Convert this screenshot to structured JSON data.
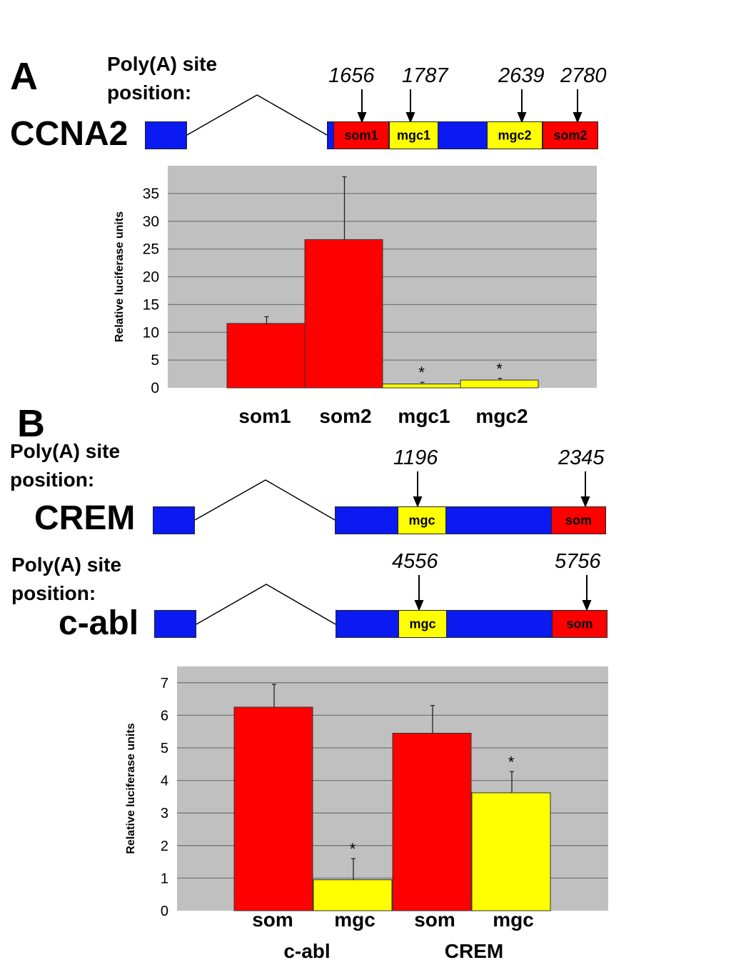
{
  "panel_a": {
    "letter": "A",
    "polya_label": "Poly(A) site position:",
    "gene": "CCNA2",
    "positions": [
      "1656",
      "1787",
      "2639",
      "2780"
    ],
    "segments": [
      "som1",
      "mgc1",
      "mgc2",
      "som2"
    ]
  },
  "panel_b": {
    "letter": "B",
    "crem": {
      "polya_label": "Poly(A) site position:",
      "gene": "CREM",
      "positions": [
        "1196",
        "2345"
      ],
      "segments": [
        "mgc",
        "som"
      ]
    },
    "cabl": {
      "polya_label": "Poly(A) site position:",
      "gene": "c-abl",
      "positions": [
        "4556",
        "5756"
      ],
      "segments": [
        "mgc",
        "som"
      ]
    }
  },
  "colors": {
    "exon_blue": "#0a1af0",
    "som_red": "#ff0000",
    "mgc_yellow": "#ffff00",
    "plot_bg": "#c0c0c0"
  },
  "chart_data": [
    {
      "type": "bar",
      "ylabel": "Relative luciferase units",
      "categories": [
        "som1",
        "som2",
        "mgc1",
        "mgc2"
      ],
      "values": [
        11.6,
        26.7,
        0.7,
        1.4
      ],
      "errors": [
        1.2,
        11.3,
        0.3,
        0.3
      ],
      "bar_colors": [
        "#ff0000",
        "#ff0000",
        "#ffff00",
        "#ffff00"
      ],
      "annotations": [
        "",
        "",
        "*",
        "*"
      ],
      "yticks": [
        0,
        5,
        10,
        15,
        20,
        25,
        30,
        35
      ],
      "ylim": [
        0,
        40
      ],
      "grid": true,
      "legend": "none"
    },
    {
      "type": "bar",
      "ylabel": "Relative luciferase units",
      "categories": [
        "som",
        "mgc",
        "som",
        "mgc"
      ],
      "group_labels": [
        "c-abl",
        "CREM"
      ],
      "values": [
        6.25,
        0.95,
        5.45,
        3.62
      ],
      "errors": [
        0.7,
        0.65,
        0.85,
        0.65
      ],
      "bar_colors": [
        "#ff0000",
        "#ffff00",
        "#ff0000",
        "#ffff00"
      ],
      "annotations": [
        "",
        "*",
        "",
        "*"
      ],
      "yticks": [
        0,
        1,
        2,
        3,
        4,
        5,
        6,
        7
      ],
      "ylim": [
        0,
        7.5
      ],
      "grid": true,
      "legend": "none"
    }
  ]
}
